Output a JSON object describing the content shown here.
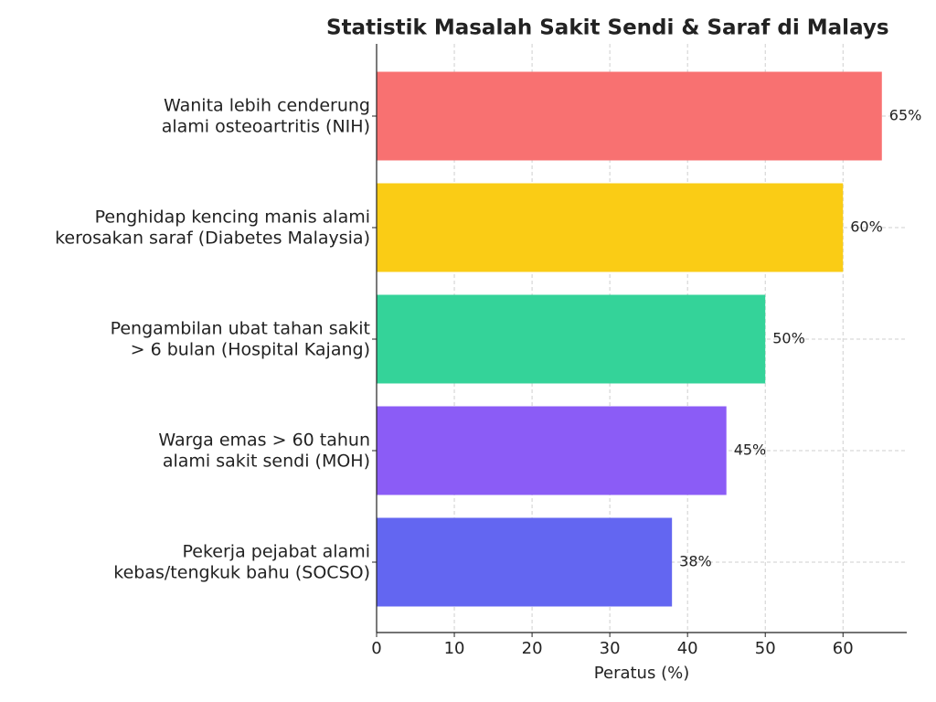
{
  "chart_data": {
    "type": "barh",
    "title": "Statistik Masalah Sakit Sendi & Saraf di Malays",
    "x_label": "Peratus (%)",
    "categories": [
      "Wanita lebih cenderung\nalami osteoartritis (NIH)",
      "Penghidap kencing manis alami\nkerosakan saraf (Diabetes Malaysia)",
      "Pengambilan ubat tahan sakit\n> 6 bulan (Hospital Kajang)",
      "Warga emas > 60 tahun\nalami sakit sendi (MOH)",
      "Pekerja pejabat alami\nkebas/tengkuk bahu (SOCSO)"
    ],
    "values": [
      65,
      60,
      50,
      45,
      38
    ],
    "value_labels": [
      "65%",
      "60%",
      "50%",
      "45%",
      "38%"
    ],
    "colors": [
      "#f87171",
      "#facc15",
      "#34d399",
      "#8b5cf6",
      "#6366f1"
    ],
    "xlim": [
      0,
      68.2
    ],
    "xticks": [
      0,
      10,
      20,
      30,
      40,
      50,
      60
    ],
    "grid": true
  }
}
